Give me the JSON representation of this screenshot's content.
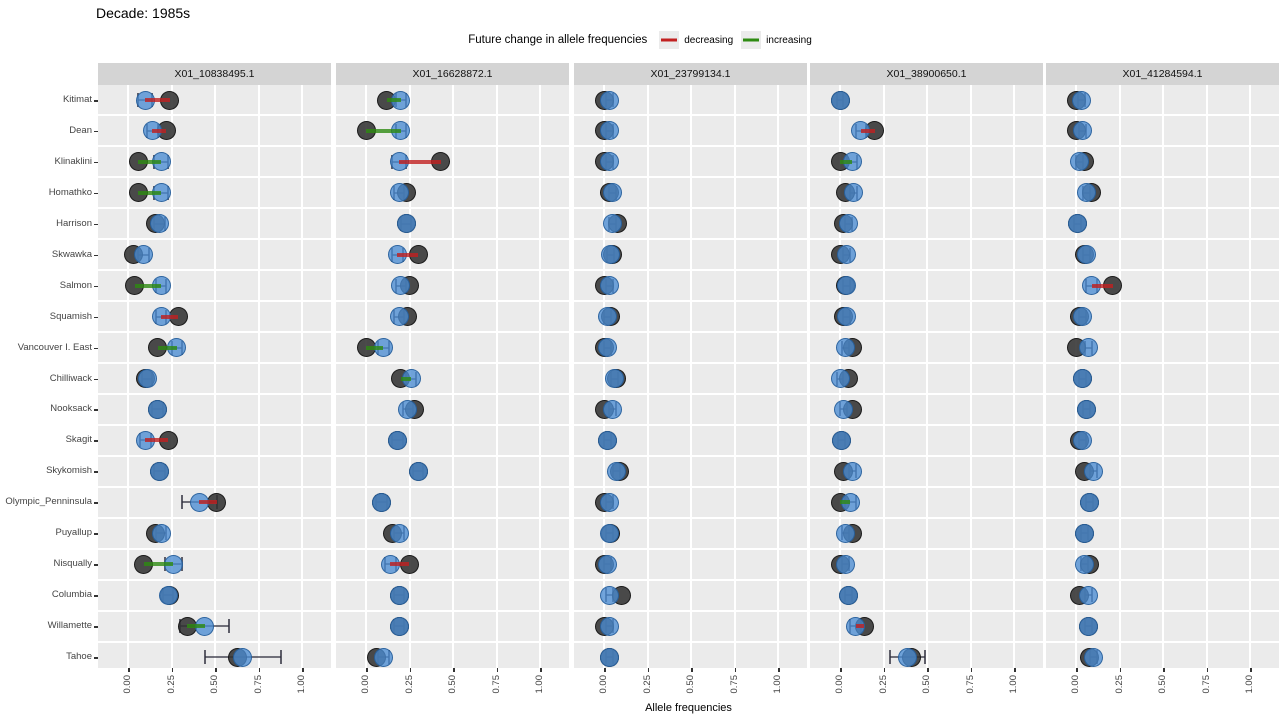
{
  "title": "Decade: 1985s",
  "legend": {
    "title": "Future change in allele frequencies",
    "items": [
      {
        "label": "decreasing",
        "color": "#c22121"
      },
      {
        "label": "increasing",
        "color": "#2e8b12"
      }
    ]
  },
  "chart_data": {
    "type": "scatter",
    "title": "Decade: 1985s",
    "xlabel": "Allele frequencies",
    "x_ticks": [
      "0.00",
      "0.25",
      "0.50",
      "0.75",
      "1.00"
    ],
    "x_tick_values": [
      0,
      0.25,
      0.5,
      0.75,
      1
    ],
    "xlim": [
      -0.17,
      1.17
    ],
    "grid": "white-on-gray",
    "legend_position": "top-center",
    "point_colors": {
      "current": "#3b3b3b",
      "future": "#4e94d8"
    },
    "change_colors": {
      "d": "#c22121",
      "i": "#2e8b12"
    },
    "categories": [
      "Kitimat",
      "Dean",
      "Klinaklini",
      "Homathko",
      "Harrison",
      "Skwawka",
      "Salmon",
      "Squamish",
      "Vancouver I. East",
      "Chilliwack",
      "Nooksack",
      "Skagit",
      "Skykomish",
      "Olympic_Penninsula",
      "Puyallup",
      "Nisqually",
      "Columbia",
      "Willamette",
      "Tahoe"
    ],
    "row_format": [
      "current_allele_freq",
      "future_allele_freq",
      "error_halfwidth",
      "change: d=decreasing, i=increasing, null=no visible change"
    ],
    "facets": [
      {
        "label": "X01_10838495.1",
        "rows": [
          [
            0.24,
            0.1,
            0.04,
            "d"
          ],
          [
            0.22,
            0.14,
            0.03,
            "d"
          ],
          [
            0.06,
            0.19,
            0.04,
            "i"
          ],
          [
            0.06,
            0.19,
            0.04,
            "i"
          ],
          [
            0.16,
            0.18,
            0.03,
            null
          ],
          [
            0.03,
            0.09,
            0.03,
            null
          ],
          [
            0.04,
            0.19,
            0.03,
            "i"
          ],
          [
            0.29,
            0.19,
            0.03,
            "d"
          ],
          [
            0.17,
            0.28,
            0.03,
            "i"
          ],
          [
            0.1,
            0.11,
            0.03,
            null
          ],
          [
            0.17,
            0.17,
            0.03,
            null
          ],
          [
            0.23,
            0.1,
            0.03,
            "d"
          ],
          [
            0.18,
            0.18,
            0.03,
            null
          ],
          [
            0.51,
            0.41,
            0.1,
            "d"
          ],
          [
            0.16,
            0.19,
            0.03,
            null
          ],
          [
            0.09,
            0.26,
            0.05,
            "i"
          ],
          [
            0.24,
            0.23,
            0.03,
            null
          ],
          [
            0.34,
            0.44,
            0.14,
            "i"
          ],
          [
            0.63,
            0.66,
            0.22,
            null
          ]
        ]
      },
      {
        "label": "X01_16628872.1",
        "rows": [
          [
            0.12,
            0.2,
            0.03,
            "i"
          ],
          [
            0.0,
            0.2,
            0.03,
            "i"
          ],
          [
            0.43,
            0.19,
            0.04,
            "d"
          ],
          [
            0.23,
            0.19,
            0.03,
            null
          ],
          [
            0.23,
            0.23,
            0.03,
            null
          ],
          [
            0.3,
            0.18,
            0.03,
            "d"
          ],
          [
            0.25,
            0.2,
            0.03,
            null
          ],
          [
            0.24,
            0.19,
            0.03,
            null
          ],
          [
            0.0,
            0.1,
            0.03,
            "i"
          ],
          [
            0.2,
            0.26,
            0.03,
            "i"
          ],
          [
            0.28,
            0.24,
            0.03,
            null
          ],
          [
            0.18,
            0.18,
            0.03,
            null
          ],
          [
            0.3,
            0.3,
            0.03,
            null
          ],
          [
            0.09,
            0.09,
            0.03,
            null
          ],
          [
            0.15,
            0.19,
            0.03,
            null
          ],
          [
            0.25,
            0.14,
            0.03,
            "d"
          ],
          [
            0.19,
            0.19,
            0.03,
            null
          ],
          [
            0.19,
            0.19,
            0.03,
            null
          ],
          [
            0.06,
            0.1,
            0.03,
            null
          ]
        ]
      },
      {
        "label": "X01_23799134.1",
        "rows": [
          [
            0.0,
            0.03,
            0.02,
            null
          ],
          [
            0.0,
            0.03,
            0.02,
            null
          ],
          [
            0.0,
            0.03,
            0.02,
            null
          ],
          [
            0.03,
            0.05,
            0.02,
            null
          ],
          [
            0.08,
            0.05,
            0.02,
            null
          ],
          [
            0.05,
            0.04,
            0.02,
            null
          ],
          [
            0.0,
            0.03,
            0.02,
            null
          ],
          [
            0.04,
            0.02,
            0.02,
            null
          ],
          [
            0.0,
            0.02,
            0.02,
            null
          ],
          [
            0.07,
            0.06,
            0.02,
            null
          ],
          [
            0.0,
            0.05,
            0.02,
            null
          ],
          [
            0.02,
            0.02,
            0.02,
            null
          ],
          [
            0.09,
            0.07,
            0.02,
            null
          ],
          [
            0.0,
            0.03,
            0.02,
            null
          ],
          [
            0.04,
            0.03,
            0.02,
            null
          ],
          [
            0.0,
            0.02,
            0.02,
            null
          ],
          [
            0.1,
            0.03,
            0.02,
            null
          ],
          [
            0.0,
            0.03,
            0.02,
            null
          ],
          [
            0.03,
            0.03,
            0.02,
            null
          ]
        ]
      },
      {
        "label": "X01_38900650.1",
        "rows": [
          [
            0.0,
            0.0,
            0.02,
            null
          ],
          [
            0.2,
            0.12,
            0.03,
            "d"
          ],
          [
            0.0,
            0.07,
            0.03,
            "i"
          ],
          [
            0.03,
            0.08,
            0.02,
            null
          ],
          [
            0.02,
            0.05,
            0.02,
            null
          ],
          [
            0.0,
            0.04,
            0.02,
            null
          ],
          [
            0.03,
            0.04,
            0.02,
            null
          ],
          [
            0.02,
            0.04,
            0.02,
            null
          ],
          [
            0.07,
            0.03,
            0.02,
            null
          ],
          [
            0.05,
            0.0,
            0.02,
            null
          ],
          [
            0.07,
            0.02,
            0.02,
            null
          ],
          [
            0.01,
            0.01,
            0.02,
            null
          ],
          [
            0.02,
            0.07,
            0.02,
            null
          ],
          [
            0.0,
            0.06,
            0.03,
            "i"
          ],
          [
            0.07,
            0.03,
            0.02,
            null
          ],
          [
            0.0,
            0.03,
            0.02,
            null
          ],
          [
            0.05,
            0.05,
            0.02,
            null
          ],
          [
            0.14,
            0.09,
            0.03,
            "d"
          ],
          [
            0.41,
            0.39,
            0.1,
            null
          ]
        ]
      },
      {
        "label": "X01_41284594.1",
        "rows": [
          [
            0.0,
            0.03,
            0.02,
            null
          ],
          [
            0.0,
            0.04,
            0.02,
            null
          ],
          [
            0.05,
            0.02,
            0.02,
            null
          ],
          [
            0.09,
            0.06,
            0.02,
            null
          ],
          [
            0.01,
            0.01,
            0.02,
            null
          ],
          [
            0.05,
            0.06,
            0.02,
            null
          ],
          [
            0.21,
            0.09,
            0.03,
            "d"
          ],
          [
            0.02,
            0.04,
            0.02,
            null
          ],
          [
            0.0,
            0.07,
            0.02,
            null
          ],
          [
            0.04,
            0.04,
            0.02,
            null
          ],
          [
            0.06,
            0.06,
            0.02,
            null
          ],
          [
            0.02,
            0.04,
            0.02,
            null
          ],
          [
            0.05,
            0.1,
            0.02,
            null
          ],
          [
            0.08,
            0.08,
            0.02,
            null
          ],
          [
            0.05,
            0.05,
            0.02,
            null
          ],
          [
            0.08,
            0.05,
            0.02,
            null
          ],
          [
            0.02,
            0.07,
            0.02,
            null
          ],
          [
            0.07,
            0.07,
            0.02,
            null
          ],
          [
            0.08,
            0.1,
            0.02,
            null
          ]
        ]
      }
    ]
  }
}
